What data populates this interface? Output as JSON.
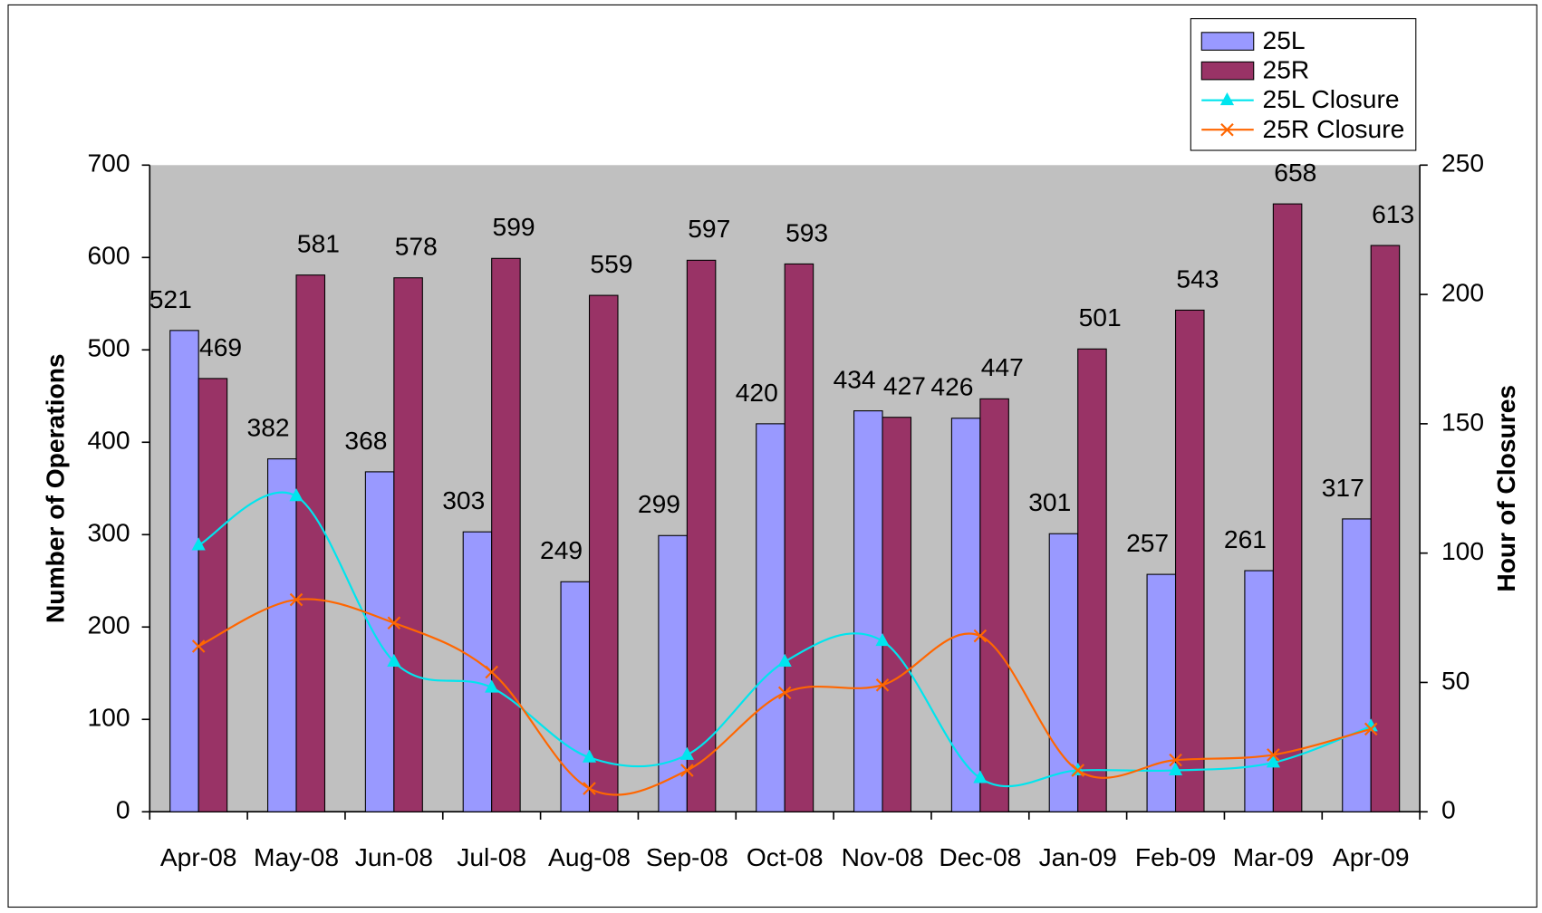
{
  "chart_data": {
    "type": "bar_line",
    "categories": [
      "Apr-08",
      "May-08",
      "Jun-08",
      "Jul-08",
      "Aug-08",
      "Sep-08",
      "Oct-08",
      "Nov-08",
      "Dec-08",
      "Jan-09",
      "Feb-09",
      "Mar-09",
      "Apr-09"
    ],
    "y_label": "Number of Operations",
    "y2_label": "Hour of Closures",
    "ylim": [
      0,
      700
    ],
    "yticks": [
      0,
      100,
      200,
      300,
      400,
      500,
      600,
      700
    ],
    "y2lim": [
      0,
      250
    ],
    "y2ticks": [
      0,
      50,
      100,
      150,
      200,
      250
    ],
    "legend": "top-right",
    "series": [
      {
        "name": "25L",
        "type": "bar",
        "color": "#9999ff",
        "values": [
          521,
          382,
          368,
          303,
          249,
          299,
          420,
          434,
          426,
          301,
          257,
          261,
          317
        ]
      },
      {
        "name": "25R",
        "type": "bar",
        "color": "#993366",
        "values": [
          469,
          581,
          578,
          599,
          559,
          597,
          593,
          427,
          447,
          501,
          543,
          658,
          613
        ]
      },
      {
        "name": "25L Closure",
        "type": "line",
        "marker": "triangle",
        "axis": "y2",
        "color": "#00e5ee",
        "values": [
          103,
          122,
          58,
          48,
          21,
          22,
          58,
          66,
          13,
          16,
          16,
          19,
          33
        ]
      },
      {
        "name": "25R Closure",
        "type": "line",
        "marker": "x",
        "axis": "y2",
        "color": "#ff6600",
        "values": [
          64,
          82,
          73,
          54,
          9,
          16,
          46,
          49,
          68,
          16,
          20,
          22,
          32
        ]
      }
    ]
  }
}
